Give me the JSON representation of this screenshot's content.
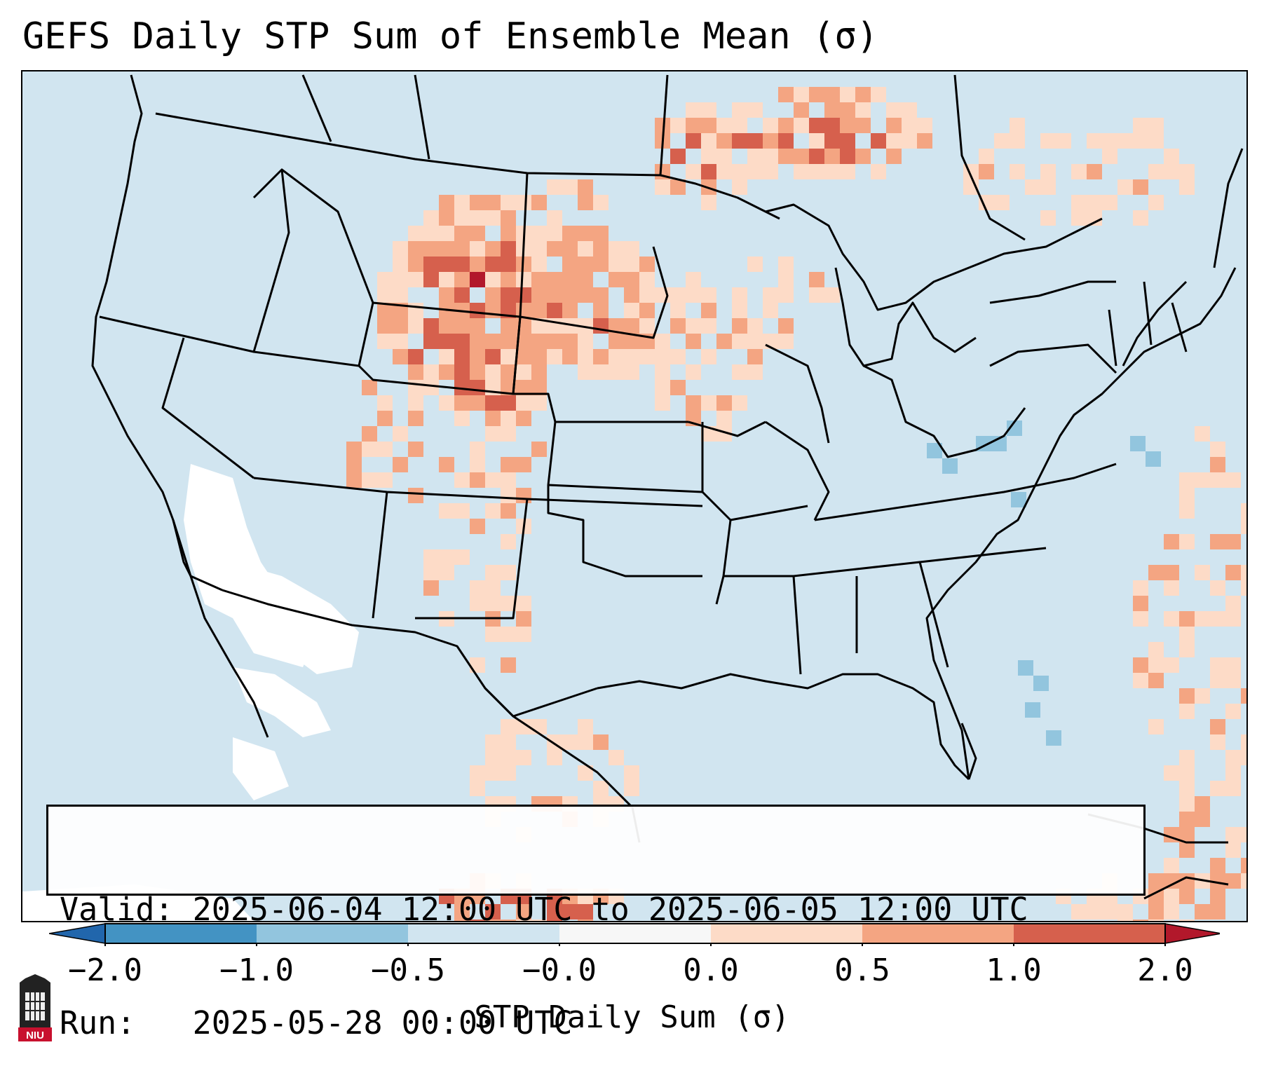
{
  "title": "GEFS Daily STP Sum of Ensemble Mean (σ)",
  "info": {
    "valid": "Valid: 2025-06-04 12:00 UTC to 2025-06-05 12:00 UTC",
    "run": "Run:   2025-05-28 00:00 UTC"
  },
  "colorbar": {
    "label": "STP Daily Sum (σ)",
    "ticks": [
      "−2.0",
      "−1.0",
      "−0.5",
      "−0.0",
      "0.0",
      "0.5",
      "1.0",
      "2.0"
    ],
    "colors": [
      "#4393c3",
      "#92c5de",
      "#d1e5f0",
      "#f7f7f7",
      "#fddbc7",
      "#f4a582",
      "#d6604d",
      "#b2182b"
    ],
    "under_color": "#2166ac",
    "over_color": "#b2182b"
  },
  "map": {
    "background_color": "#d1e5f0",
    "zero_color": "#ffffff",
    "cell_colors": [
      "#fddbc7",
      "#f4a582",
      "#d6604d",
      "#b2182b",
      "#92c5de"
    ]
  },
  "logo": {
    "text": "NIU",
    "icon": "niu-tower-icon"
  }
}
